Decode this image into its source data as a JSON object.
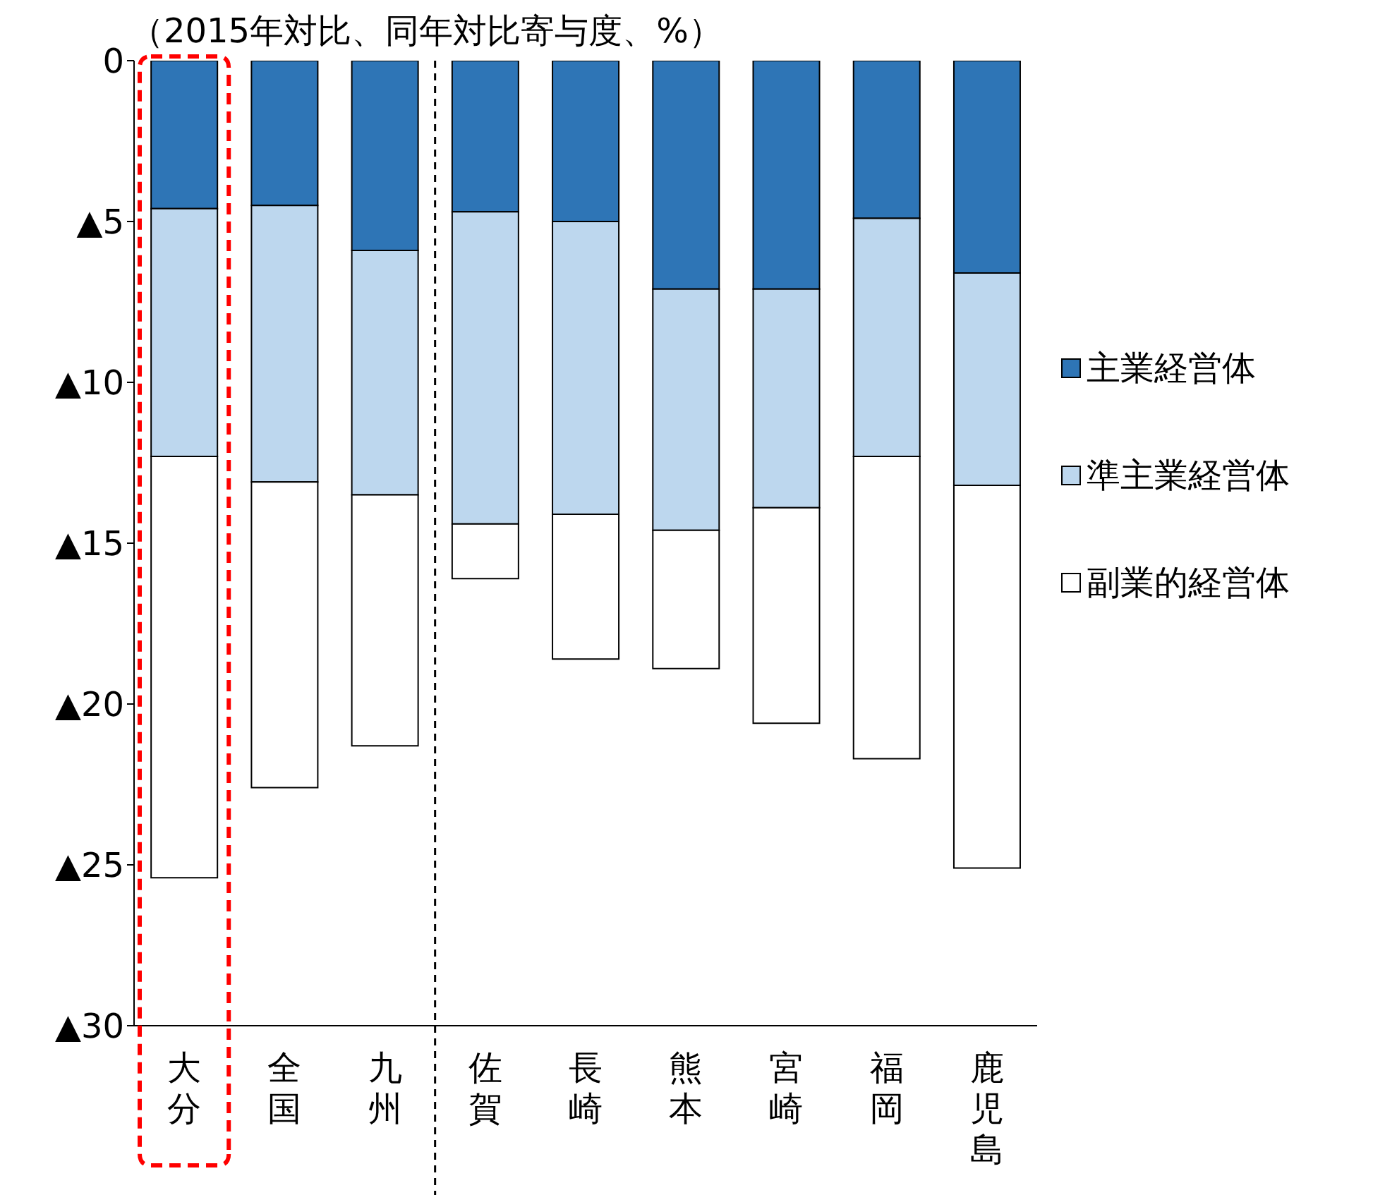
{
  "chart_data": {
    "type": "bar",
    "stacked": true,
    "subtitle": "（2015年対比、同年対比寄与度、%）",
    "categories": [
      "大分",
      "全国",
      "九州",
      "佐賀",
      "長崎",
      "熊本",
      "宮崎",
      "福岡",
      "鹿児島"
    ],
    "series": [
      {
        "name": "主業経営体",
        "color": "#2e75b6",
        "values": [
          -4.6,
          -4.5,
          -5.9,
          -4.7,
          -5.0,
          -7.1,
          -7.1,
          -4.9,
          -6.6
        ]
      },
      {
        "name": "準主業経営体",
        "color": "#bdd7ee",
        "values": [
          -7.7,
          -8.6,
          -7.6,
          -9.7,
          -9.1,
          -7.5,
          -6.8,
          -7.4,
          -6.6
        ]
      },
      {
        "name": "副業的経営体",
        "color": "#ffffff",
        "values": [
          -13.1,
          -9.5,
          -7.8,
          -1.7,
          -4.5,
          -4.3,
          -6.7,
          -9.4,
          -11.9
        ]
      }
    ],
    "ylim": [
      -30,
      0
    ],
    "yticks": [
      {
        "value": -30,
        "label": "▲30"
      },
      {
        "value": -25,
        "label": "▲25"
      },
      {
        "value": -20,
        "label": "▲20"
      },
      {
        "value": -15,
        "label": "▲15"
      },
      {
        "value": -10,
        "label": "▲10"
      },
      {
        "value": -5,
        "label": "▲5"
      },
      0
    ],
    "legend": "right",
    "grid": false
  }
}
